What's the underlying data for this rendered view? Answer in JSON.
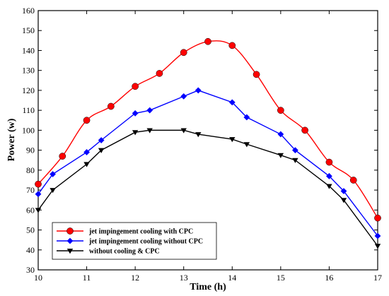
{
  "chart_data": {
    "type": "line",
    "xlabel": "Time (h)",
    "ylabel": "Power (w)",
    "xlim": [
      10,
      17
    ],
    "ylim": [
      30,
      160
    ],
    "xticks": [
      10,
      11,
      12,
      13,
      14,
      15,
      16,
      17
    ],
    "yticks": [
      30,
      40,
      50,
      60,
      70,
      80,
      90,
      100,
      110,
      120,
      130,
      140,
      150,
      160
    ],
    "grid": false,
    "legend_position": "bottom-left",
    "series": [
      {
        "name": "jet impingement cooling with CPC",
        "color": "#ff0000",
        "marker": "circle",
        "smooth": true,
        "x": [
          10,
          10.5,
          11,
          11.5,
          12,
          12.5,
          13,
          13.5,
          14,
          14.5,
          15,
          15.5,
          16,
          16.5,
          17
        ],
        "y": [
          73,
          87,
          105,
          112,
          122,
          128.5,
          139,
          144.5,
          142.5,
          128,
          110,
          100,
          84,
          75,
          56
        ]
      },
      {
        "name": "jet impingement cooling without CPC",
        "color": "#0000ff",
        "marker": "diamond",
        "smooth": false,
        "x": [
          10,
          10.3,
          11,
          11.3,
          12,
          12.3,
          13,
          13.3,
          14,
          14.3,
          15,
          15.3,
          16,
          16.3,
          17
        ],
        "y": [
          68,
          78,
          89,
          95,
          108.5,
          110,
          117,
          120,
          114,
          106.5,
          98,
          90,
          77,
          69.5,
          47
        ]
      },
      {
        "name": "without cooling & CPC",
        "color": "#000000",
        "marker": "triangle-down",
        "smooth": false,
        "x": [
          10,
          10.3,
          11,
          11.3,
          12,
          12.3,
          13,
          13.3,
          14,
          14.3,
          15,
          15.3,
          16,
          16.3,
          17
        ],
        "y": [
          60,
          70,
          83,
          90,
          99,
          100,
          100,
          98,
          95.5,
          93,
          87.5,
          85,
          72,
          65,
          42
        ]
      }
    ]
  }
}
